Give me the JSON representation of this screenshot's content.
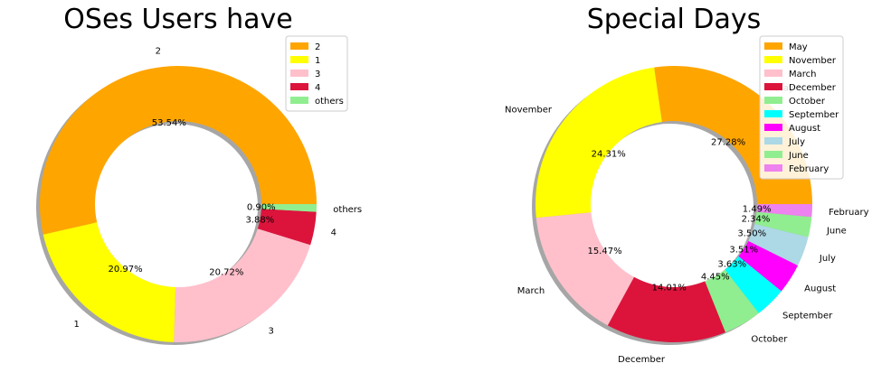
{
  "chart_data": [
    {
      "type": "donut",
      "title": "OSes Users have",
      "categories": [
        "2",
        "1",
        "3",
        "4",
        "others"
      ],
      "values": [
        53.54,
        20.97,
        20.72,
        3.88,
        0.9
      ],
      "percent_labels": [
        "53.54%",
        "20.97%",
        "20.72%",
        "3.88%",
        "0.90%"
      ],
      "colors": [
        "#FFA500",
        "#FFFF00",
        "#FFC0CB",
        "#DC143C",
        "#90EE90"
      ],
      "legend": {
        "placement": "top-right",
        "entries": [
          "2",
          "1",
          "3",
          "4",
          "others"
        ]
      },
      "start_angle_deg": 0,
      "shadow": true
    },
    {
      "type": "donut",
      "title": "Special Days",
      "categories": [
        "May",
        "November",
        "March",
        "December",
        "October",
        "September",
        "August",
        "July",
        "June",
        "February"
      ],
      "values": [
        27.28,
        24.31,
        15.47,
        14.01,
        4.45,
        3.63,
        3.51,
        3.5,
        2.34,
        1.49
      ],
      "percent_labels": [
        "27.28%",
        "24.31%",
        "15.47%",
        "14.01%",
        "4.45%",
        "3.63%",
        "3.51%",
        "3.50%",
        "2.34%",
        "1.49%"
      ],
      "colors": [
        "#FFA500",
        "#FFFF00",
        "#FFC0CB",
        "#DC143C",
        "#90EE90",
        "#00FFFF",
        "#FF00FF",
        "#ADD8E6",
        "#90EE90",
        "#EE82EE"
      ],
      "legend": {
        "placement": "top-right",
        "entries": [
          "May",
          "November",
          "March",
          "December",
          "October",
          "September",
          "August",
          "July",
          "June",
          "February"
        ]
      },
      "start_angle_deg": 0,
      "shadow": true
    }
  ]
}
